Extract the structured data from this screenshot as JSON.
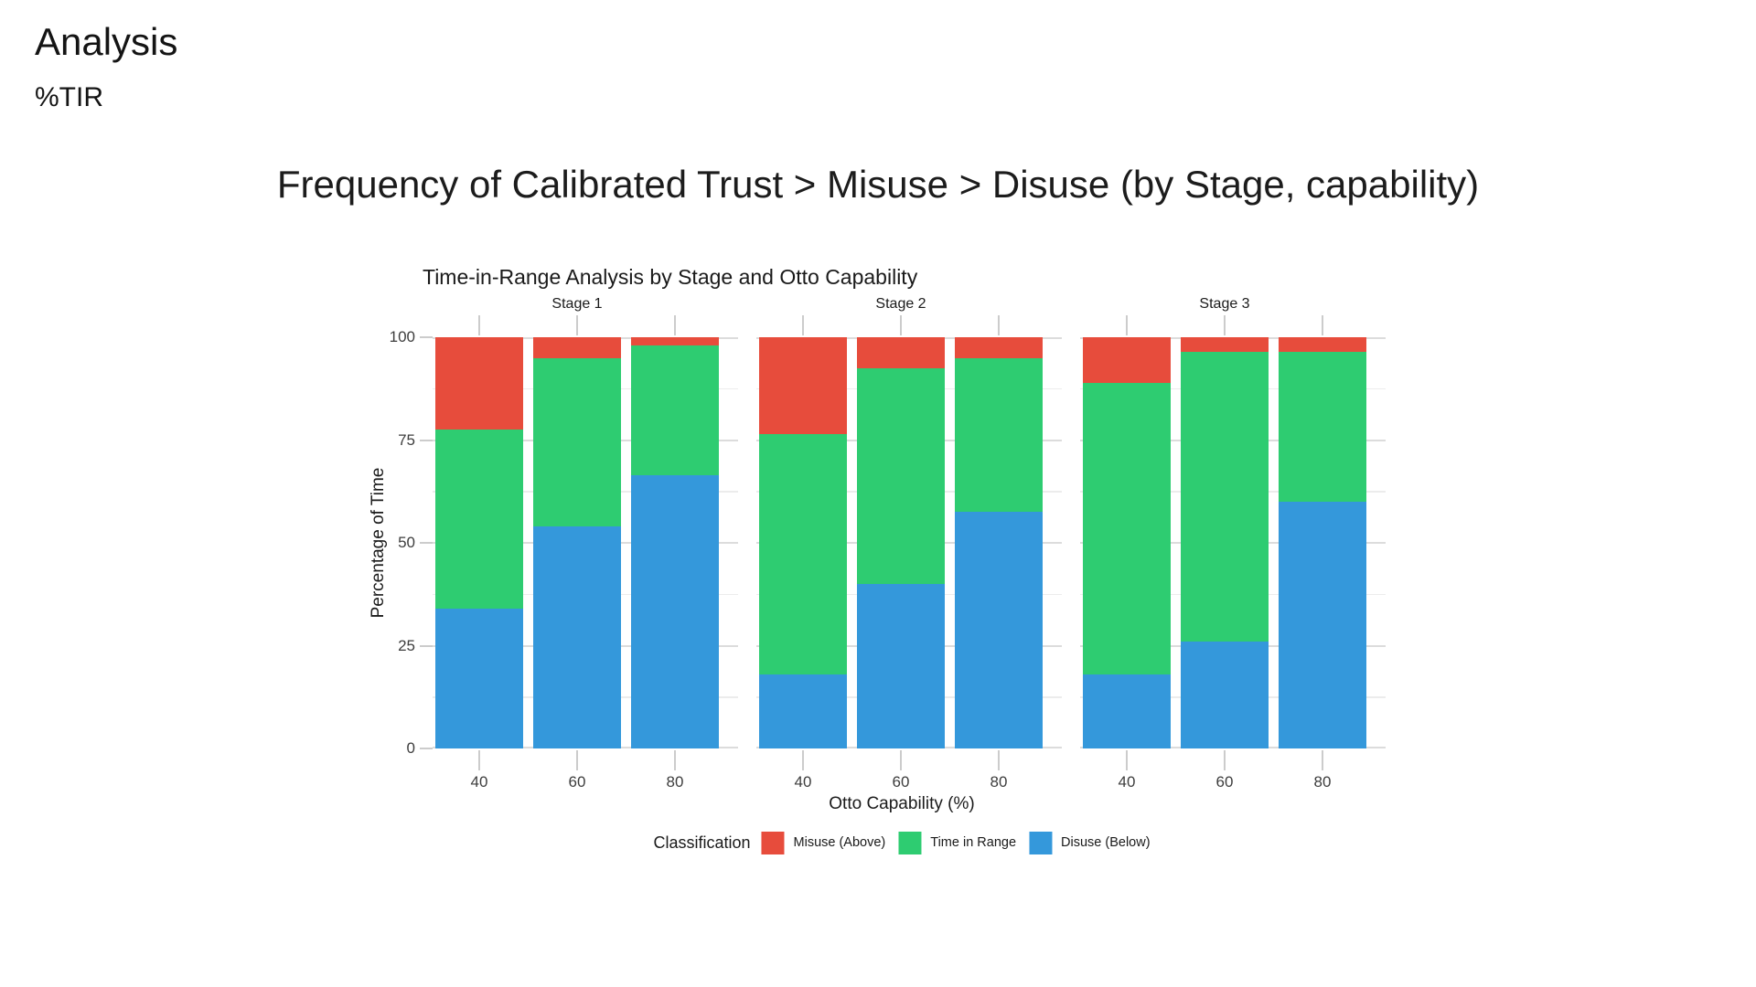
{
  "page": {
    "heading": "Analysis",
    "subheading": "%TIR",
    "main_title": "Frequency of Calibrated Trust > Misuse > Disuse (by Stage, capability)"
  },
  "chart_data": {
    "type": "bar",
    "variant": "stacked-100pct-faceted",
    "title": "Time-in-Range Analysis by Stage and Otto Capability",
    "facets": [
      "Stage 1",
      "Stage 2",
      "Stage 3"
    ],
    "categories": [
      "40",
      "60",
      "80"
    ],
    "xlabel": "Otto Capability (%)",
    "ylabel": "Percentage of Time",
    "legend_title": "Classification",
    "legend_position": "bottom",
    "grid": true,
    "ylim": [
      0,
      100
    ],
    "yticks": [
      0,
      25,
      50,
      75,
      100
    ],
    "minor_grid_step": 12.5,
    "series": [
      {
        "name": "Misuse (Above)",
        "color": "#E74C3C",
        "values": [
          [
            22.5,
            5,
            2
          ],
          [
            23.5,
            7.5,
            5
          ],
          [
            11,
            3.5,
            3.5
          ]
        ]
      },
      {
        "name": "Time in Range",
        "color": "#2ECC71",
        "values": [
          [
            43.5,
            41,
            31.5
          ],
          [
            58.5,
            52.5,
            37.5
          ],
          [
            71,
            70.5,
            36.5
          ]
        ]
      },
      {
        "name": "Disuse (Below)",
        "color": "#3498DB",
        "values": [
          [
            34,
            54,
            66.5
          ],
          [
            18,
            40,
            57.5
          ],
          [
            18,
            26,
            60
          ]
        ]
      }
    ],
    "stack_order_bottom_to_top": [
      "Disuse (Below)",
      "Time in Range",
      "Misuse (Above)"
    ]
  }
}
